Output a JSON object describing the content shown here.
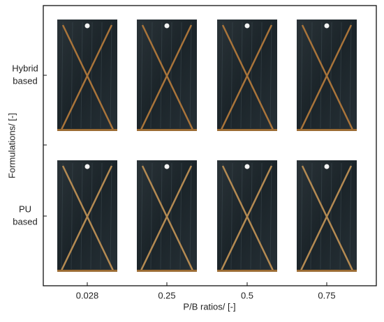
{
  "y_axis": {
    "title": "Formulations/ [-]",
    "rows": [
      [
        "Hybrid",
        "based"
      ],
      [
        "PU",
        "based"
      ]
    ]
  },
  "x_axis": {
    "title": "P/B ratios/ [-]",
    "columns": [
      "0.028",
      "0.25",
      "0.5",
      "0.75"
    ]
  }
}
